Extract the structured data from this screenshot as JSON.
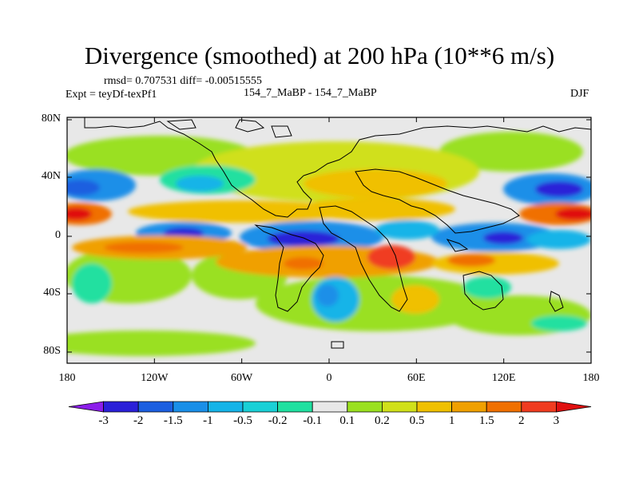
{
  "title": "Divergence (smoothed) at 200 hPa (10**6 m/s)",
  "stats": "rmsd= 0.707531 diff= -0.00515555",
  "expt_label": "Expt = teyDf-texPf1",
  "center_label": "154_7_MaBP - 154_7_MaBP",
  "season_label": "DJF",
  "lat_labels": [
    "80N",
    "40N",
    "0",
    "40S",
    "80S"
  ],
  "lon_labels": [
    "180",
    "120W",
    "60W",
    "0",
    "60E",
    "120E",
    "180"
  ],
  "colorbar": {
    "labels": [
      "-3",
      "-2",
      "-1.5",
      "-1",
      "-0.5",
      "-0.2",
      "-0.1",
      "0.1",
      "0.2",
      "0.5",
      "1",
      "1.5",
      "2",
      "3"
    ],
    "colors": [
      "#8c1eea",
      "#2a20d8",
      "#1c5fe0",
      "#1a8fe8",
      "#16b4e8",
      "#1ad0d6",
      "#20e0a0",
      "#e8e8e8",
      "#9ae020",
      "#d0e01a",
      "#f0c000",
      "#f0a000",
      "#f07000",
      "#f03c20",
      "#e01010"
    ]
  },
  "colors": {
    "background": "#e8e8e8",
    "coastline": "#000000"
  }
}
